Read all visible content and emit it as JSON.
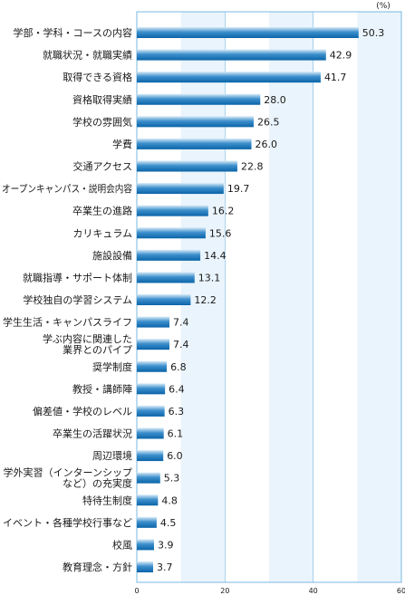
{
  "chart_data": {
    "type": "bar",
    "orientation": "horizontal",
    "unit": "(%)",
    "xlim": [
      0,
      60
    ],
    "xticks": [
      "0",
      "20",
      "40",
      "60"
    ],
    "grid": true,
    "colors": {
      "bar_dark": "#0a64a8",
      "bar_light": "#d9ecf8",
      "band_light": "#eaf4fc",
      "frame": "#7ab8e0"
    },
    "categories": [
      "学部・学科・コースの内容",
      "就職状況・就職実績",
      "取得できる資格",
      "資格取得実績",
      "学校の雰囲気",
      "学費",
      "交通アクセス",
      "オープンキャンパス・説明会内容",
      "卒業生の進路",
      "カリキュラム",
      "施設設備",
      "就職指導・サポート体制",
      "学校独自の学習システム",
      "学生生活・キャンパスライフ",
      "学ぶ内容に関連した\n業界とのパイプ",
      "奨学制度",
      "教授・講師陣",
      "偏差値・学校のレベル",
      "卒業生の活躍状況",
      "周辺環境",
      "学外実習（インターンシップ\nなど）の充実度",
      "特待生制度",
      "イベント・各種学校行事など",
      "校風",
      "教育理念・方針"
    ],
    "values": [
      50.3,
      42.9,
      41.7,
      28.0,
      26.5,
      26.0,
      22.8,
      19.7,
      16.2,
      15.6,
      14.4,
      13.1,
      12.2,
      7.4,
      7.4,
      6.8,
      6.4,
      6.3,
      6.1,
      6.0,
      5.3,
      4.8,
      4.5,
      3.9,
      3.7
    ],
    "value_labels": [
      "50.3",
      "42.9",
      "41.7",
      "28.0",
      "26.5",
      "26.0",
      "22.8",
      "19.7",
      "16.2",
      "15.6",
      "14.4",
      "13.1",
      "12.2",
      "7.4",
      "7.4",
      "6.8",
      "6.4",
      "6.3",
      "6.1",
      "6.0",
      "5.3",
      "4.8",
      "4.5",
      "3.9",
      "3.7"
    ]
  }
}
